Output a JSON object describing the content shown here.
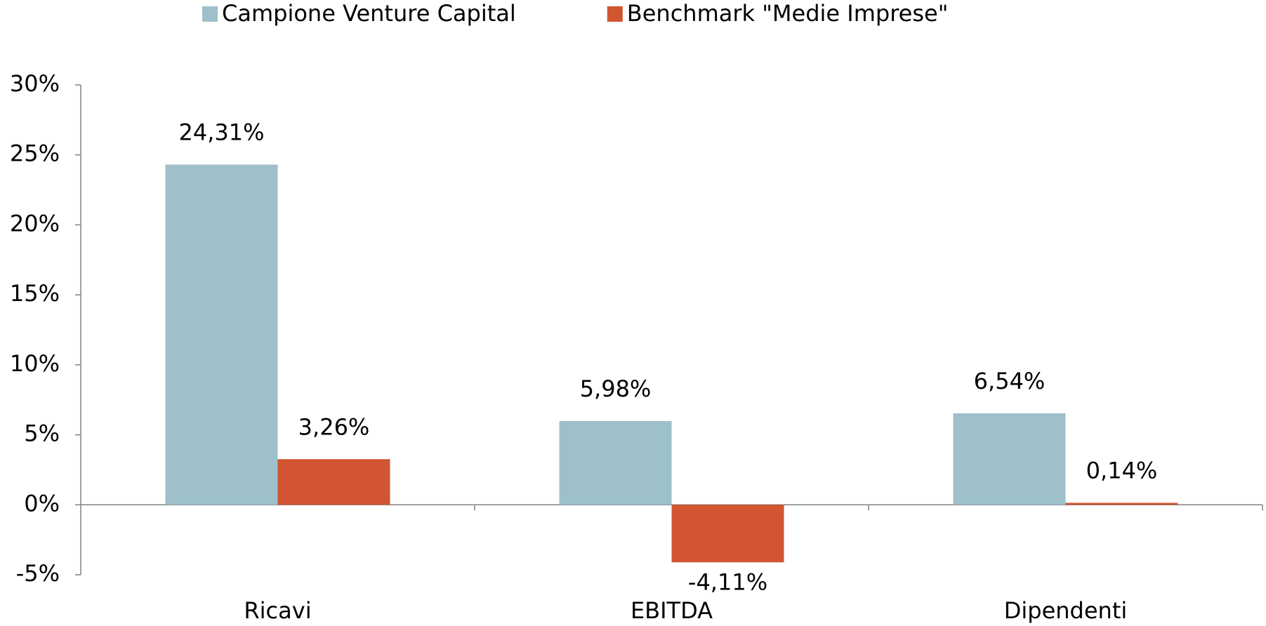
{
  "chart_data": {
    "type": "bar",
    "categories": [
      "Ricavi",
      "EBITDA",
      "Dipendenti"
    ],
    "series": [
      {
        "name": "Campione Venture Capital",
        "color": "#9dc0cb",
        "values": [
          24.31,
          5.98,
          6.54
        ],
        "value_labels": [
          "24,31%",
          "5,98%",
          "6,54%"
        ]
      },
      {
        "name": "Benchmark \"Medie Imprese\"",
        "color": "#d15530",
        "values": [
          3.26,
          -4.11,
          0.14
        ],
        "value_labels": [
          "3,26%",
          "-4,11%",
          "0,14%"
        ]
      }
    ],
    "ylim": [
      -5,
      30
    ],
    "yticks": [
      {
        "value": -5,
        "label": "-5%"
      },
      {
        "value": 0,
        "label": "0%"
      },
      {
        "value": 5,
        "label": "5%"
      },
      {
        "value": 10,
        "label": "10%"
      },
      {
        "value": 15,
        "label": "15%"
      },
      {
        "value": 20,
        "label": "20%"
      },
      {
        "value": 25,
        "label": "25%"
      },
      {
        "value": 30,
        "label": "30%"
      }
    ],
    "legend": "top",
    "grid": false
  }
}
